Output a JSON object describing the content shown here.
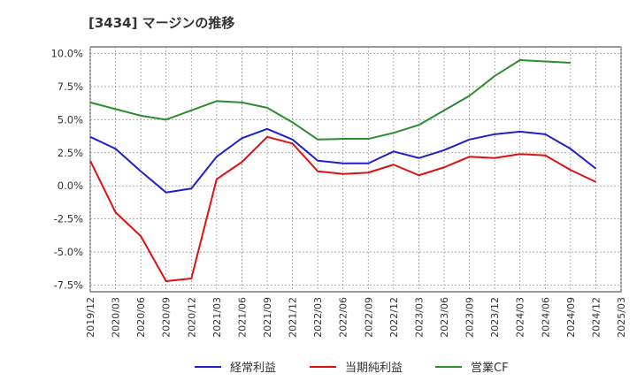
{
  "chart_data": {
    "type": "line",
    "title": "[3434]  マージンの推移",
    "xlabel": "",
    "ylabel": "",
    "ylim": [
      -8.0,
      10.5
    ],
    "yticks": [
      10.0,
      7.5,
      5.0,
      2.5,
      0.0,
      -2.5,
      -5.0,
      -7.5
    ],
    "ytick_labels": [
      "10.0%",
      "7.5%",
      "5.0%",
      "2.5%",
      "0.0%",
      "-2.5%",
      "-5.0%",
      "-7.5%"
    ],
    "categories": [
      "2019/12",
      "2020/03",
      "2020/06",
      "2020/09",
      "2020/12",
      "2021/03",
      "2021/06",
      "2021/09",
      "2021/12",
      "2022/03",
      "2022/06",
      "2022/09",
      "2022/12",
      "2023/03",
      "2023/06",
      "2023/09",
      "2023/12",
      "2024/03",
      "2024/06",
      "2024/09",
      "2024/12",
      "2025/03"
    ],
    "grid": true,
    "legend_position": "bottom",
    "series": [
      {
        "name": "経常利益",
        "color": "#1f1fcc",
        "values": [
          3.7,
          2.8,
          1.1,
          -0.5,
          -0.2,
          2.2,
          3.6,
          4.3,
          3.5,
          1.9,
          1.7,
          1.7,
          2.6,
          2.1,
          2.7,
          3.5,
          3.9,
          4.1,
          3.9,
          2.8,
          1.3,
          null
        ]
      },
      {
        "name": "当期純利益",
        "color": "#e01010",
        "values": [
          1.9,
          -2.0,
          -3.8,
          -7.2,
          -7.0,
          0.5,
          1.8,
          3.7,
          3.2,
          1.1,
          0.9,
          1.0,
          1.6,
          0.8,
          1.4,
          2.2,
          2.1,
          2.4,
          2.3,
          1.2,
          0.3,
          null
        ]
      },
      {
        "name": "営業CF",
        "color": "#2e8b2e",
        "values": [
          6.3,
          5.8,
          5.3,
          5.0,
          5.7,
          6.4,
          6.3,
          5.9,
          4.8,
          3.5,
          3.55,
          3.55,
          4.0,
          4.6,
          5.7,
          6.8,
          8.3,
          9.5,
          9.4,
          9.3,
          null,
          null
        ]
      }
    ]
  }
}
